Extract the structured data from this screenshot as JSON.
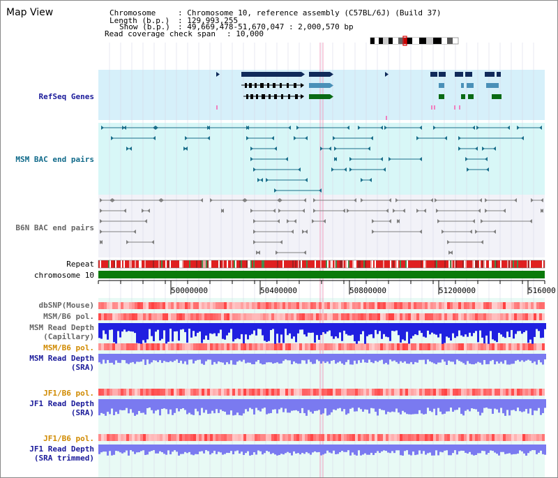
{
  "window": {
    "title": "Map View"
  },
  "header": {
    "chromosome_label": "Chromosome",
    "chromosome_value": ": Chromosome 10, reference assembly (C57BL/6J) (Build 37)",
    "length_label": "Length (b.p.)",
    "length_value": ": 129,993,255",
    "show_label": "Show (b.p.)",
    "show_value": ": 49,669,478-51,670,047 : 2,000,570 bp",
    "coverage_label": "Read coverage check span",
    "coverage_value": ": 10,000"
  },
  "tracks": {
    "refseq": "RefSeq Genes",
    "msm_bac": "MSM BAC end pairs",
    "b6n_bac": "B6N BAC end pairs",
    "repeat": "Repeat",
    "chromosome": "chromosome 10",
    "dbsnp": "dbSNP(Mouse)",
    "msm_b6_pol_1": "MSM/B6 pol.",
    "msm_read_depth_cap_1": "MSM Read Depth",
    "msm_read_depth_cap_2": "(Capillary)",
    "msm_b6_pol_2": "MSM/B6 pol.",
    "msm_read_depth_sra_1": "MSM Read Depth",
    "msm_read_depth_sra_2": "(SRA)",
    "jf1_b6_pol_1": "JF1/B6 pol.",
    "jf1_read_depth_sra_1": "JF1 Read Depth",
    "jf1_read_depth_sra_2": "(SRA)",
    "jf1_b6_pol_2": "JF1/B6 pol.",
    "jf1_read_depth_trim_1": "JF1 Read Depth",
    "jf1_read_depth_trim_2": "(SRA trimmed)"
  },
  "axis": {
    "ticks": [
      {
        "value": "50000000"
      },
      {
        "value": "50400000"
      },
      {
        "value": "50800000"
      },
      {
        "value": "51200000"
      },
      {
        "value": "516000"
      }
    ]
  },
  "colors": {
    "refseq_bg": "#d6f0fa",
    "msm_bg": "#d8f7f7",
    "b6n_bg": "#f2f2f8",
    "lower_bg": "#e8faf5",
    "gene_navy": "#102a5a",
    "gene_steel": "#4a90b8",
    "gene_green": "#0a6a14",
    "bac_teal": "#1a6e8a",
    "bac_gray": "#808080",
    "chrom_green": "#0a7a0a",
    "depth_blue": "#2020e0",
    "depth_light": "#7a7af0",
    "pol_red": "#e84040"
  }
}
